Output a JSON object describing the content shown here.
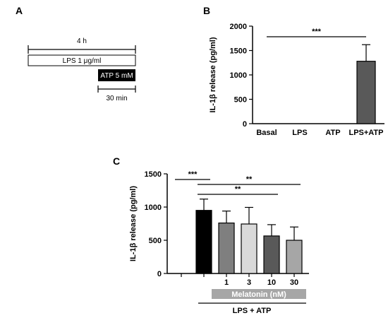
{
  "panels": {
    "a": {
      "letter": "A",
      "duration_label": "4 h",
      "lps_label": "LPS 1 μg/ml",
      "atp_label": "ATP 5 mM",
      "atp_duration_label": "30 min"
    },
    "b": {
      "letter": "B"
    },
    "c": {
      "letter": "C",
      "melatonin_label": "Melatonin (nM)",
      "group_label": "LPS + ATP"
    }
  },
  "colors": {
    "atp_box": "#000000",
    "melatonin_box": "#a6a6a6"
  },
  "chart_data": [
    {
      "panel": "B",
      "type": "bar",
      "categories": [
        "Basal",
        "LPS",
        "ATP",
        "LPS+ATP"
      ],
      "values": [
        0,
        0,
        0,
        1280
      ],
      "errors": [
        0,
        0,
        0,
        340
      ],
      "bar_colors": [
        "#595959",
        "#595959",
        "#595959",
        "#595959"
      ],
      "ylabel": "IL-1β release (pg/ml)",
      "ylim": [
        0,
        2000
      ],
      "yticks": [
        0,
        500,
        1000,
        1500,
        2000
      ],
      "significance": [
        {
          "from": 0,
          "to": 3,
          "label": "***"
        }
      ],
      "grid": false
    },
    {
      "panel": "C",
      "type": "bar",
      "categories": [
        "",
        "",
        "1",
        "3",
        "10",
        "30"
      ],
      "values": [
        0,
        950,
        760,
        745,
        565,
        500
      ],
      "errors": [
        0,
        170,
        180,
        250,
        170,
        200
      ],
      "bar_colors": [
        "#ffffff",
        "#000000",
        "#7f7f7f",
        "#d9d9d9",
        "#595959",
        "#a6a6a6"
      ],
      "ylabel": "IL-1β release (pg/ml)",
      "ylim": [
        0,
        1500
      ],
      "yticks": [
        0,
        500,
        1000,
        1500
      ],
      "significance": [
        {
          "from": 0,
          "to": 1,
          "label": "***"
        },
        {
          "from": 1,
          "to": 4,
          "label": "**"
        },
        {
          "from": 1,
          "to": 5,
          "label": "**"
        }
      ],
      "grid": false
    }
  ]
}
